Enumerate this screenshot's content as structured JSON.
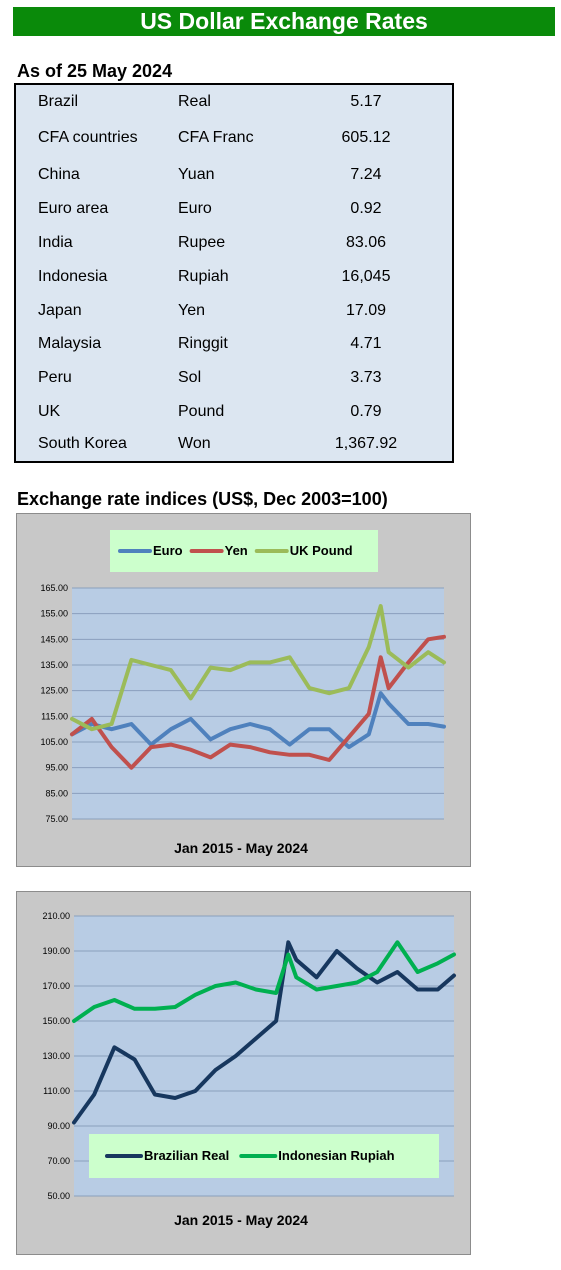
{
  "header": {
    "title": "US Dollar Exchange Rates"
  },
  "as_of": "As of 25 May 2024",
  "rates": [
    {
      "country": "Brazil",
      "currency": "Real",
      "rate": "5.17"
    },
    {
      "country": "CFA countries",
      "currency": "CFA Franc",
      "rate": "605.12"
    },
    {
      "country": "China",
      "currency": "Yuan",
      "rate": "7.24"
    },
    {
      "country": "Euro area",
      "currency": "Euro",
      "rate": "0.92"
    },
    {
      "country": "India",
      "currency": "Rupee",
      "rate": "83.06"
    },
    {
      "country": "Indonesia",
      "currency": "Rupiah",
      "rate": "16,045"
    },
    {
      "country": "Japan",
      "currency": "Yen",
      "rate": "17.09"
    },
    {
      "country": "Malaysia",
      "currency": "Ringgit",
      "rate": "4.71"
    },
    {
      "country": "Peru",
      "currency": "Sol",
      "rate": "3.73"
    },
    {
      "country": "UK",
      "currency": "Pound",
      "rate": "0.79"
    },
    {
      "country": "South Korea",
      "currency": "Won",
      "rate": "1,367.92"
    }
  ],
  "indices_title": "Exchange rate indices (US$, Dec 2003=100)",
  "colors": {
    "banner": "#0a8a0a",
    "table_bg": "#dce6f1",
    "plot_bg": "#b8cce4",
    "legend_bg": "#ccffcc"
  },
  "chart_data": [
    {
      "type": "line",
      "title": "",
      "xlabel": "Jan 2015 - May 2024",
      "ylabel": "",
      "x": [
        2015.0,
        2015.5,
        2016.0,
        2016.5,
        2017.0,
        2017.5,
        2018.0,
        2018.5,
        2019.0,
        2019.5,
        2020.0,
        2020.5,
        2021.0,
        2021.5,
        2022.0,
        2022.5,
        2022.8,
        2023.0,
        2023.5,
        2024.0,
        2024.4
      ],
      "ylim": [
        75,
        165
      ],
      "yticks": [
        "165.00",
        "155.00",
        "145.00",
        "135.00",
        "125.00",
        "115.00",
        "105.00",
        "95.00",
        "85.00",
        "75.00"
      ],
      "grid": true,
      "legend_position": "top",
      "series": [
        {
          "name": "Euro",
          "color": "#4f81bd",
          "values": [
            108,
            112,
            110,
            112,
            104,
            110,
            114,
            106,
            110,
            112,
            110,
            104,
            110,
            110,
            103,
            108,
            124,
            120,
            112,
            112,
            111
          ]
        },
        {
          "name": "Yen",
          "color": "#c0504d",
          "values": [
            108,
            114,
            103,
            95,
            103,
            104,
            102,
            99,
            104,
            103,
            101,
            100,
            100,
            98,
            107,
            116,
            138,
            126,
            136,
            145,
            146
          ]
        },
        {
          "name": "UK Pound",
          "color": "#9bbb59",
          "values": [
            114,
            110,
            112,
            137,
            135,
            133,
            122,
            134,
            133,
            136,
            136,
            138,
            126,
            124,
            126,
            142,
            158,
            140,
            134,
            140,
            136
          ]
        }
      ]
    },
    {
      "type": "line",
      "title": "",
      "xlabel": "Jan 2015 - May 2024",
      "ylabel": "",
      "x": [
        2015.0,
        2015.5,
        2016.0,
        2016.5,
        2017.0,
        2017.5,
        2018.0,
        2018.5,
        2019.0,
        2019.5,
        2020.0,
        2020.3,
        2020.5,
        2021.0,
        2021.5,
        2022.0,
        2022.5,
        2023.0,
        2023.5,
        2024.0,
        2024.4
      ],
      "ylim": [
        50,
        210
      ],
      "yticks": [
        "210.00",
        "190.00",
        "170.00",
        "150.00",
        "130.00",
        "110.00",
        "90.00",
        "70.00",
        "50.00"
      ],
      "grid": true,
      "legend_position": "bottom",
      "series": [
        {
          "name": "Brazilian Real",
          "color": "#17375e",
          "values": [
            92,
            108,
            135,
            128,
            108,
            106,
            110,
            122,
            130,
            140,
            150,
            195,
            185,
            175,
            190,
            180,
            172,
            178,
            168,
            168,
            176
          ]
        },
        {
          "name": "Indonesian Rupiah",
          "color": "#00b050",
          "values": [
            150,
            158,
            162,
            157,
            157,
            158,
            165,
            170,
            172,
            168,
            166,
            188,
            175,
            168,
            170,
            172,
            178,
            195,
            178,
            183,
            188
          ]
        }
      ]
    }
  ]
}
